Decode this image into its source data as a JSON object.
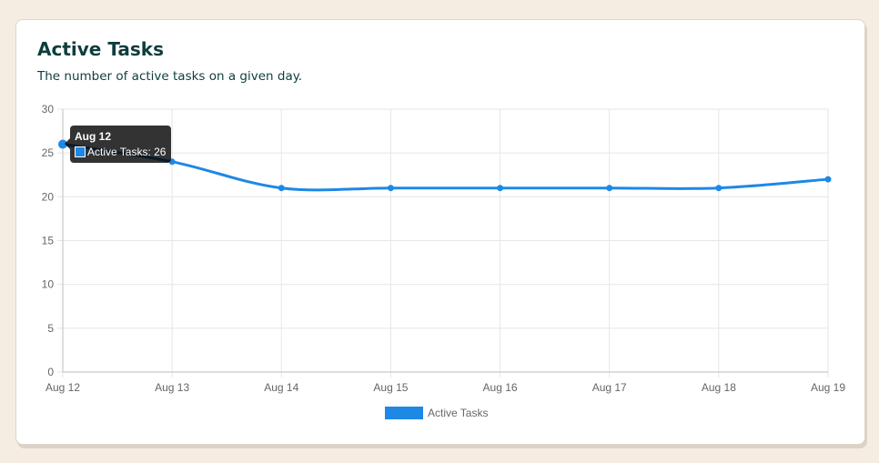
{
  "card": {
    "title": "Active Tasks",
    "subtitle": "The number of active tasks on a given day."
  },
  "colors": {
    "page_background": "#f5ede1",
    "title_text": "#0f3d3e",
    "series_line": "#1e88e5",
    "grid": "#e6e6e6",
    "tick_text": "#666666"
  },
  "tooltip": {
    "title": "Aug 12",
    "label": "Active Tasks: 26"
  },
  "chart_data": {
    "type": "line",
    "title": "Active Tasks",
    "subtitle": "The number of active tasks on a given day.",
    "xlabel": "",
    "ylabel": "",
    "categories": [
      "Aug 12",
      "Aug 13",
      "Aug 14",
      "Aug 15",
      "Aug 16",
      "Aug 17",
      "Aug 18",
      "Aug 19"
    ],
    "series": [
      {
        "name": "Active Tasks",
        "values": [
          26,
          24,
          21,
          21,
          21,
          21,
          21,
          22
        ],
        "color": "#1e88e5"
      }
    ],
    "ylim": [
      0,
      30
    ],
    "yticks": [
      0,
      5,
      10,
      15,
      20,
      25,
      30
    ],
    "grid": true,
    "legend": "bottom-center",
    "smooth": true
  }
}
